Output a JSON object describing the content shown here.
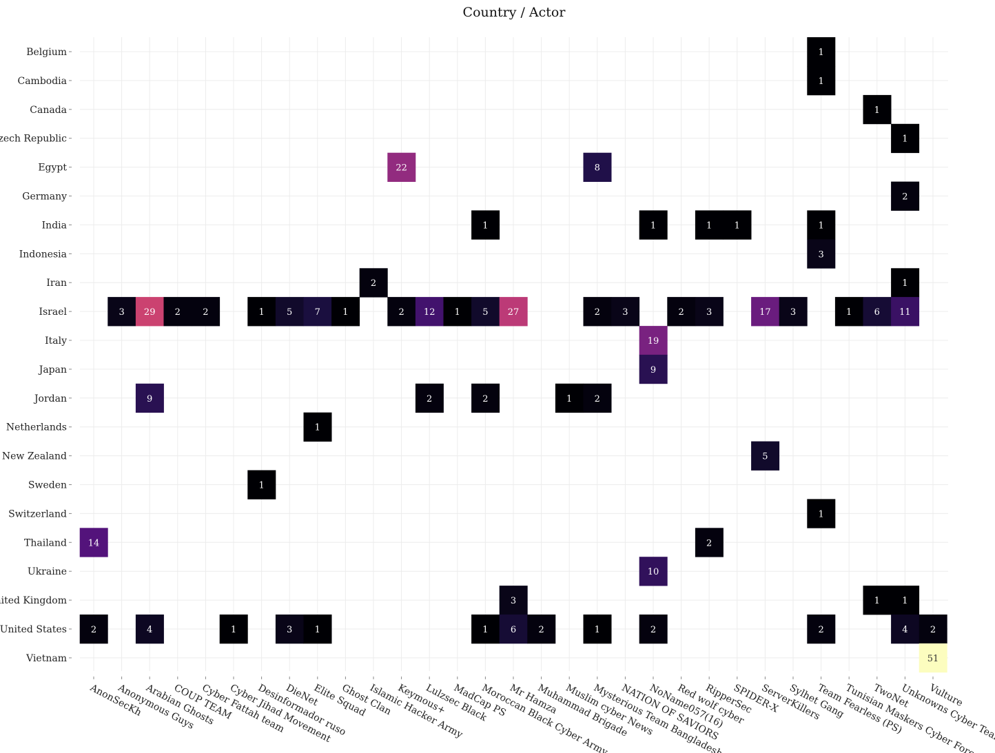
{
  "chart_data": {
    "type": "heatmap",
    "title": "Country / Actor",
    "xlabel": "",
    "ylabel": "",
    "grid": true,
    "legend": "none",
    "colormap": "magma",
    "x_categories": [
      "AnonSecKh",
      "Anonymous Guys",
      "Arabian Ghosts",
      "COUP TEAM",
      "Cyber Fattah team",
      "Cyber Jihad Movement",
      "Desinformador ruso",
      "DieNet",
      "Elite Squad",
      "Ghost Clan",
      "Islamic Hacker Army",
      "Keymous+",
      "Lulzsec Black",
      "MadCap PS",
      "Moroccan Black Cyber Army",
      "Mr Hamza",
      "Muhammad Brigade",
      "Muslim cyber News",
      "Mysterious Team Bangladesh",
      "NATION OF SAVIORS",
      "NoName057(16)",
      "Red wolf cyber",
      "RipperSec",
      "SPIDER-X",
      "ServerKillers",
      "Sylhet Gang",
      "Team Fearless (PS)",
      "Tunisian Maskers Cyber Force",
      "TwoNet",
      "Unknowns Cyber Team",
      "Vulture"
    ],
    "y_categories": [
      "Belgium",
      "Cambodia",
      "Canada",
      "Czech Republic",
      "Egypt",
      "Germany",
      "India",
      "Indonesia",
      "Iran",
      "Israel",
      "Italy",
      "Japan",
      "Jordan",
      "Netherlands",
      "New Zealand",
      "Sweden",
      "Switzerland",
      "Thailand",
      "Ukraine",
      "United Kingdom",
      "United States",
      "Vietnam"
    ],
    "value_range": [
      1,
      51
    ],
    "cells": [
      {
        "x": "Team Fearless (PS)",
        "y": "Belgium",
        "value": 1
      },
      {
        "x": "Team Fearless (PS)",
        "y": "Cambodia",
        "value": 1
      },
      {
        "x": "TwoNet",
        "y": "Canada",
        "value": 1
      },
      {
        "x": "Unknowns Cyber Team",
        "y": "Czech Republic",
        "value": 1
      },
      {
        "x": "Keymous+",
        "y": "Egypt",
        "value": 22
      },
      {
        "x": "Mysterious Team Bangladesh",
        "y": "Egypt",
        "value": 8
      },
      {
        "x": "Unknowns Cyber Team",
        "y": "Germany",
        "value": 2
      },
      {
        "x": "Moroccan Black Cyber Army",
        "y": "India",
        "value": 1
      },
      {
        "x": "NoName057(16)",
        "y": "India",
        "value": 1
      },
      {
        "x": "RipperSec",
        "y": "India",
        "value": 1
      },
      {
        "x": "SPIDER-X",
        "y": "India",
        "value": 1
      },
      {
        "x": "Team Fearless (PS)",
        "y": "India",
        "value": 1
      },
      {
        "x": "Team Fearless (PS)",
        "y": "Indonesia",
        "value": 3
      },
      {
        "x": "Islamic Hacker Army",
        "y": "Iran",
        "value": 2
      },
      {
        "x": "Unknowns Cyber Team",
        "y": "Iran",
        "value": 1
      },
      {
        "x": "Anonymous Guys",
        "y": "Israel",
        "value": 3
      },
      {
        "x": "Arabian Ghosts",
        "y": "Israel",
        "value": 29
      },
      {
        "x": "COUP TEAM",
        "y": "Israel",
        "value": 2
      },
      {
        "x": "Cyber Fattah team",
        "y": "Israel",
        "value": 2
      },
      {
        "x": "Desinformador ruso",
        "y": "Israel",
        "value": 1
      },
      {
        "x": "DieNet",
        "y": "Israel",
        "value": 5
      },
      {
        "x": "Elite Squad",
        "y": "Israel",
        "value": 7
      },
      {
        "x": "Ghost Clan",
        "y": "Israel",
        "value": 1
      },
      {
        "x": "Keymous+",
        "y": "Israel",
        "value": 2
      },
      {
        "x": "Lulzsec Black",
        "y": "Israel",
        "value": 12
      },
      {
        "x": "MadCap PS",
        "y": "Israel",
        "value": 1
      },
      {
        "x": "Moroccan Black Cyber Army",
        "y": "Israel",
        "value": 5
      },
      {
        "x": "Mr Hamza",
        "y": "Israel",
        "value": 27
      },
      {
        "x": "Mysterious Team Bangladesh",
        "y": "Israel",
        "value": 2
      },
      {
        "x": "NATION OF SAVIORS",
        "y": "Israel",
        "value": 3
      },
      {
        "x": "Red wolf cyber",
        "y": "Israel",
        "value": 2
      },
      {
        "x": "RipperSec",
        "y": "Israel",
        "value": 3
      },
      {
        "x": "ServerKillers",
        "y": "Israel",
        "value": 17
      },
      {
        "x": "Sylhet Gang",
        "y": "Israel",
        "value": 3
      },
      {
        "x": "Tunisian Maskers Cyber Force",
        "y": "Israel",
        "value": 1
      },
      {
        "x": "TwoNet",
        "y": "Israel",
        "value": 6
      },
      {
        "x": "Unknowns Cyber Team",
        "y": "Israel",
        "value": 11
      },
      {
        "x": "NoName057(16)",
        "y": "Italy",
        "value": 19
      },
      {
        "x": "NoName057(16)",
        "y": "Japan",
        "value": 9
      },
      {
        "x": "Arabian Ghosts",
        "y": "Jordan",
        "value": 9
      },
      {
        "x": "Lulzsec Black",
        "y": "Jordan",
        "value": 2
      },
      {
        "x": "Moroccan Black Cyber Army",
        "y": "Jordan",
        "value": 2
      },
      {
        "x": "Muslim cyber News",
        "y": "Jordan",
        "value": 1
      },
      {
        "x": "Mysterious Team Bangladesh",
        "y": "Jordan",
        "value": 2
      },
      {
        "x": "Elite Squad",
        "y": "Netherlands",
        "value": 1
      },
      {
        "x": "ServerKillers",
        "y": "New Zealand",
        "value": 5
      },
      {
        "x": "Desinformador ruso",
        "y": "Sweden",
        "value": 1
      },
      {
        "x": "Team Fearless (PS)",
        "y": "Switzerland",
        "value": 1
      },
      {
        "x": "AnonSecKh",
        "y": "Thailand",
        "value": 14
      },
      {
        "x": "RipperSec",
        "y": "Thailand",
        "value": 2
      },
      {
        "x": "NoName057(16)",
        "y": "Ukraine",
        "value": 10
      },
      {
        "x": "Mr Hamza",
        "y": "United Kingdom",
        "value": 3
      },
      {
        "x": "TwoNet",
        "y": "United Kingdom",
        "value": 1
      },
      {
        "x": "Unknowns Cyber Team",
        "y": "United Kingdom",
        "value": 1
      },
      {
        "x": "AnonSecKh",
        "y": "United States",
        "value": 2
      },
      {
        "x": "Arabian Ghosts",
        "y": "United States",
        "value": 4
      },
      {
        "x": "Cyber Jihad Movement",
        "y": "United States",
        "value": 1
      },
      {
        "x": "DieNet",
        "y": "United States",
        "value": 3
      },
      {
        "x": "Elite Squad",
        "y": "United States",
        "value": 1
      },
      {
        "x": "Moroccan Black Cyber Army",
        "y": "United States",
        "value": 1
      },
      {
        "x": "Mr Hamza",
        "y": "United States",
        "value": 6
      },
      {
        "x": "Muhammad Brigade",
        "y": "United States",
        "value": 2
      },
      {
        "x": "Mysterious Team Bangladesh",
        "y": "United States",
        "value": 1
      },
      {
        "x": "NoName057(16)",
        "y": "United States",
        "value": 2
      },
      {
        "x": "Team Fearless (PS)",
        "y": "United States",
        "value": 2
      },
      {
        "x": "Unknowns Cyber Team",
        "y": "United States",
        "value": 4
      },
      {
        "x": "Vulture",
        "y": "United States",
        "value": 2
      },
      {
        "x": "Vulture",
        "y": "Vietnam",
        "value": 51
      }
    ]
  }
}
